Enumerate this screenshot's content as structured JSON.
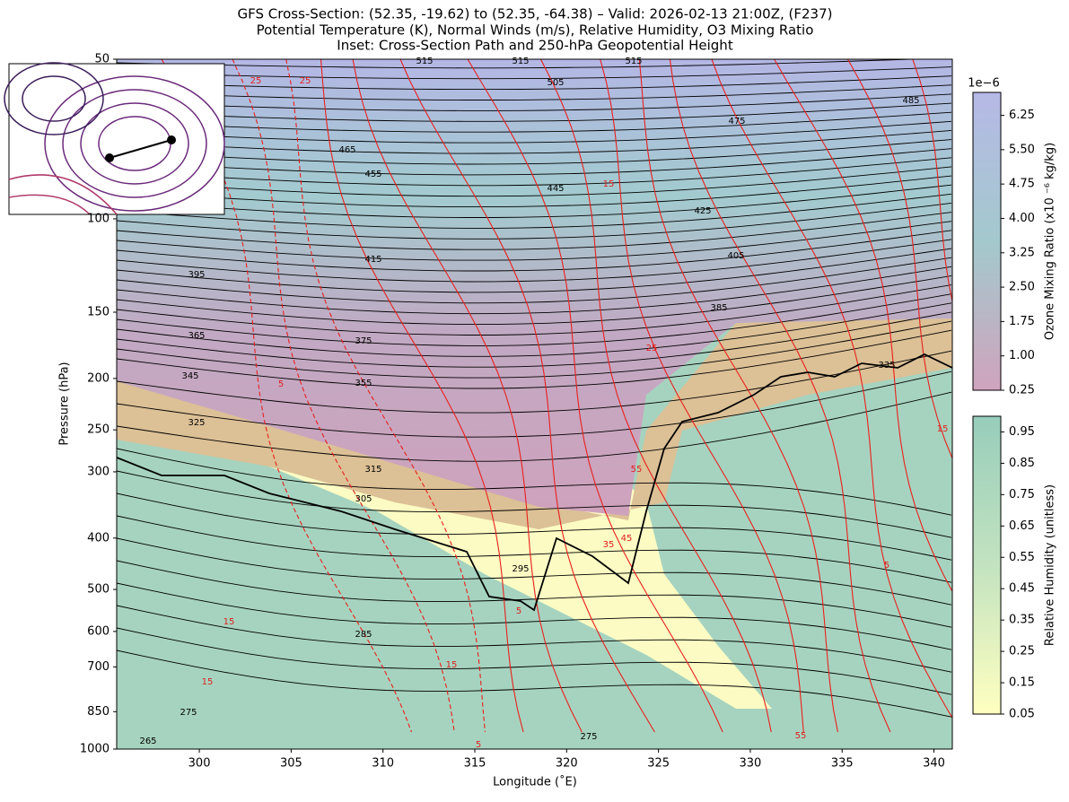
{
  "chart_data": {
    "type": "cross-section",
    "title": [
      "GFS Cross-Section: (52.35, -19.62) to (52.35, -64.38) – Valid: 2026-02-13 21:00Z, (F237)",
      "Potential Temperature (K), Normal Winds (m/s), Relative Humidity, O3 Mixing Ratio",
      "Inset: Cross-Section Path and 250-hPa Geopotential Height"
    ],
    "xlabel": "Longitude (˚E)",
    "ylabel": "Pressure (hPa)",
    "xlim": [
      295.5,
      341.0
    ],
    "xticks": [
      300,
      305,
      310,
      315,
      320,
      325,
      330,
      335,
      340
    ],
    "ylim": [
      1000,
      50
    ],
    "ylog": true,
    "yticks": [
      50,
      100,
      150,
      200,
      250,
      300,
      400,
      500,
      600,
      700,
      850,
      1000
    ],
    "theta_contour_labels": [
      515,
      515,
      515,
      505,
      485,
      475,
      465,
      455,
      445,
      425,
      415,
      405,
      395,
      385,
      375,
      365,
      355,
      345,
      335,
      325,
      315,
      305,
      295,
      285,
      275,
      275,
      265
    ],
    "wind_contour_labels": [
      25,
      25,
      15,
      25,
      5,
      55,
      45,
      35,
      15,
      15,
      5,
      15,
      5,
      15,
      5,
      55
    ],
    "colorbars": [
      {
        "label": "Ozone Mixing Ratio (x10 ⁻⁶ kg/kg)",
        "offset_label": "1e−6",
        "lim": [
          0.25,
          6.75
        ],
        "ticks": [
          {
            "value": 0.25,
            "label": "0.25"
          },
          {
            "value": 1.0,
            "label": "1.00"
          },
          {
            "value": 1.75,
            "label": "1.75"
          },
          {
            "value": 2.5,
            "label": "2.50"
          },
          {
            "value": 3.25,
            "label": "3.25"
          },
          {
            "value": 4.0,
            "label": "4.00"
          },
          {
            "value": 4.75,
            "label": "4.75"
          },
          {
            "value": 5.5,
            "label": "5.50"
          },
          {
            "value": 6.25,
            "label": "6.25"
          }
        ],
        "colors": [
          "#cfa3bd",
          "#a3c9cd",
          "#b6b9e6"
        ]
      },
      {
        "label": "Relative Humidity (unitless)",
        "lim": [
          0.05,
          1.0
        ],
        "ticks": [
          0.05,
          0.15,
          0.25,
          0.35,
          0.45,
          0.55,
          0.65,
          0.75,
          0.85,
          0.95
        ],
        "colors": [
          "#ffffc0",
          "#c3e3c0",
          "#97cdbb"
        ]
      }
    ]
  }
}
